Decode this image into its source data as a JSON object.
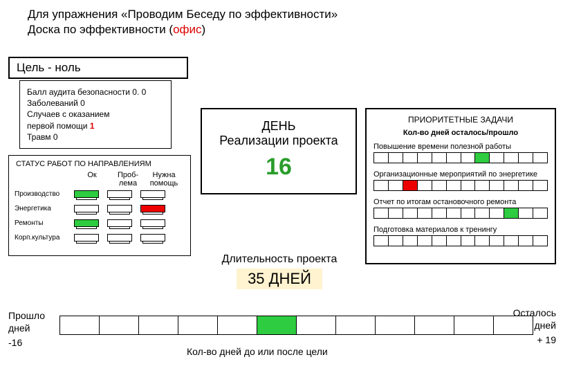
{
  "title": {
    "line1": "Для упражнения «Проводим Беседу по эффективности»",
    "line2_prefix": "Доска по эффективности (",
    "line2_red": "офис",
    "line2_suffix": ")"
  },
  "goal": "Цель - ноль",
  "stats": {
    "lines": [
      {
        "text": "Балл аудита безопасности 0. 0"
      },
      {
        "text": "Заболеваний 0"
      },
      {
        "text": "Случаев с оказанием"
      },
      {
        "text_pre": "первой помощи ",
        "red": "1"
      },
      {
        "text": "Травм 0"
      }
    ]
  },
  "status": {
    "title": "СТАТУС РАБОТ ПО НАПРАВЛЕНИЯМ",
    "cols": [
      "Ок",
      "Проб-\nлема",
      "Нужна\nпомощь"
    ],
    "rows": [
      {
        "label": "Производство",
        "cells": [
          "green",
          "",
          ""
        ]
      },
      {
        "label": "Энергетика",
        "cells": [
          "",
          "",
          "red"
        ]
      },
      {
        "label": "Ремонты",
        "cells": [
          "green",
          "",
          ""
        ]
      },
      {
        "label": "Корп.культура",
        "cells": [
          "",
          "",
          ""
        ]
      }
    ]
  },
  "day": {
    "l1": "ДЕНЬ",
    "l2": "Реализации проекта",
    "value": "16"
  },
  "duration": {
    "label": "Длительность проекта",
    "value": "35 ДНЕЙ"
  },
  "priority": {
    "title": "ПРИОРИТЕТНЫЕ ЗАДАЧИ",
    "subtitle": "Кол-во дней осталось/прошло",
    "tasks": [
      {
        "label": "Повышение времени полезной работы",
        "cells": [
          "",
          "",
          "",
          "",
          "",
          "",
          "",
          "green",
          "",
          "",
          "",
          ""
        ]
      },
      {
        "label": "Организационные мероприятий по энергетике",
        "cells": [
          "",
          "",
          "red",
          "",
          "",
          "",
          "",
          "",
          "",
          "",
          "",
          ""
        ]
      },
      {
        "label": "Отчет по итогам остановочного ремонта",
        "cells": [
          "",
          "",
          "",
          "",
          "",
          "",
          "",
          "",
          "",
          "green",
          "",
          ""
        ]
      },
      {
        "label": "Подготовка материалов к тренингу",
        "cells": [
          "",
          "",
          "",
          "",
          "",
          "",
          "",
          "",
          "",
          "",
          "",
          ""
        ]
      }
    ]
  },
  "timeline": {
    "left_label": "Прошло\nдней",
    "left_value": "-16",
    "right_label": "Осталось\nдней",
    "right_value": "+ 19",
    "cells": [
      "",
      "",
      "",
      "",
      "",
      "green",
      "",
      "",
      "",
      "",
      "",
      ""
    ],
    "caption": "Кол-во дней до или после цели"
  }
}
